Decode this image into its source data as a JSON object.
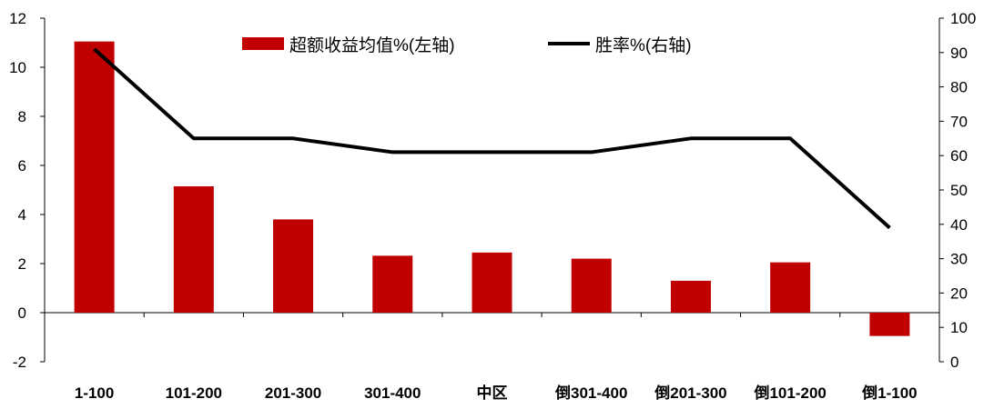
{
  "chart_data": {
    "type": "bar+line",
    "categories": [
      "1-100",
      "101-200",
      "201-300",
      "301-400",
      "中区",
      "倒301-400",
      "倒201-300",
      "倒101-200",
      "倒1-100"
    ],
    "series": [
      {
        "name": "超额收益均值%(左轴)",
        "type": "bar",
        "axis": "left",
        "color": "#C00000",
        "values": [
          11.05,
          5.15,
          3.8,
          2.32,
          2.45,
          2.2,
          1.3,
          2.05,
          -0.95
        ]
      },
      {
        "name": "胜率%(右轴)",
        "type": "line",
        "axis": "right",
        "color": "#000000",
        "values": [
          91,
          65,
          65,
          61,
          61,
          61,
          65,
          65,
          39
        ]
      }
    ],
    "left_axis": {
      "min": -2,
      "max": 12,
      "step": 2,
      "ticks": [
        "-2",
        "0",
        "2",
        "4",
        "6",
        "8",
        "10",
        "12"
      ]
    },
    "right_axis": {
      "min": 0,
      "max": 100,
      "step": 10,
      "ticks": [
        "0",
        "10",
        "20",
        "30",
        "40",
        "50",
        "60",
        "70",
        "80",
        "90",
        "100"
      ]
    },
    "legend_position": "top-center",
    "grid": false
  }
}
